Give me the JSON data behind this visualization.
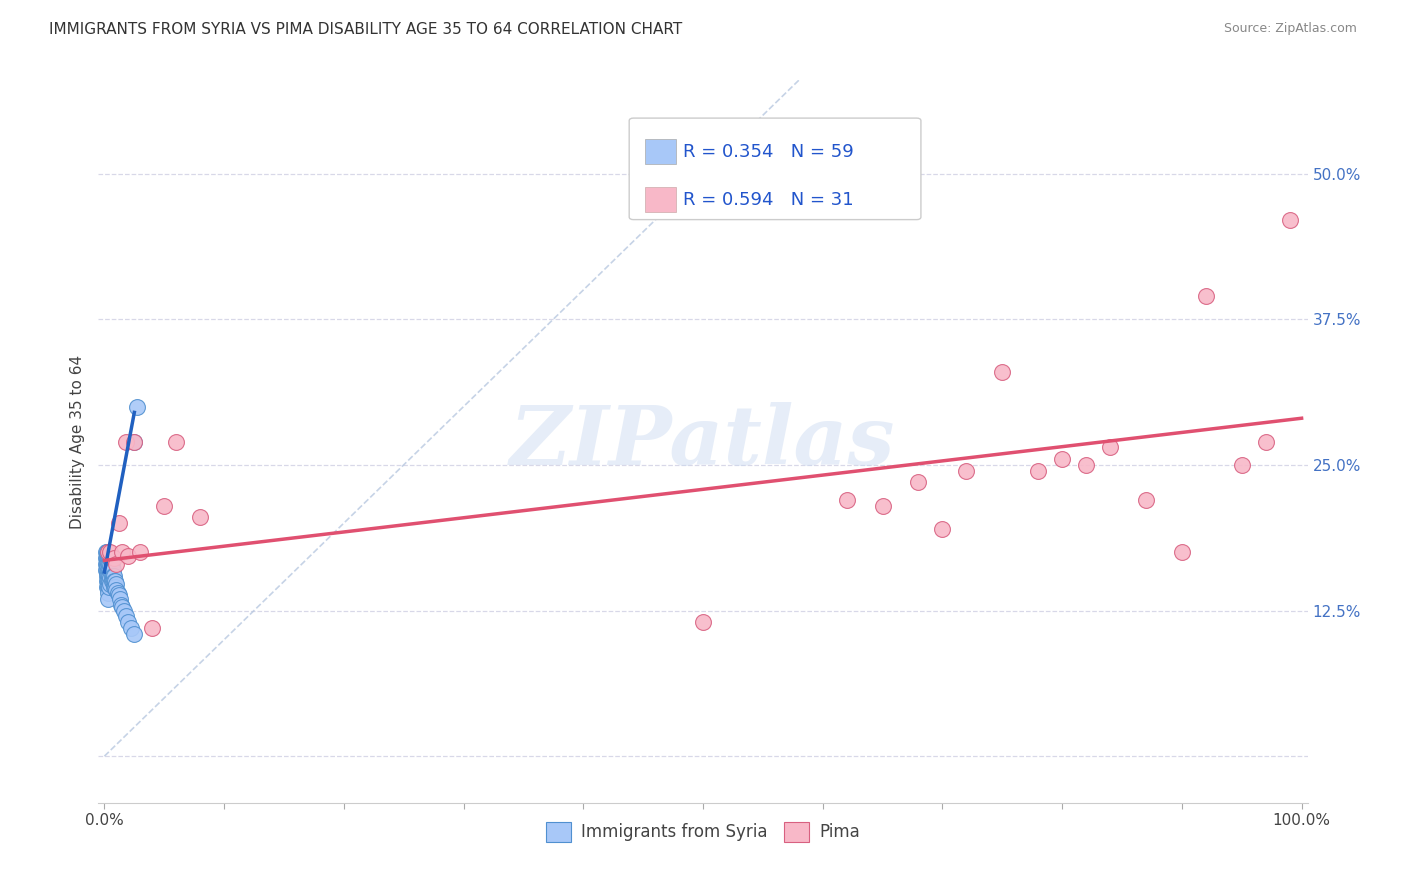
{
  "title": "IMMIGRANTS FROM SYRIA VS PIMA DISABILITY AGE 35 TO 64 CORRELATION CHART",
  "source": "Source: ZipAtlas.com",
  "ylabel": "Disability Age 35 to 64",
  "xlim": [
    -0.005,
    1.005
  ],
  "ylim": [
    -0.04,
    0.58
  ],
  "x_ticks": [
    0.0,
    0.1,
    0.2,
    0.3,
    0.4,
    0.5,
    0.6,
    0.7,
    0.8,
    0.9,
    1.0
  ],
  "x_tick_labels_show": [
    "0.0%",
    "",
    "",
    "",
    "",
    "",
    "",
    "",
    "",
    "",
    "100.0%"
  ],
  "y_ticks": [
    0.0,
    0.125,
    0.25,
    0.375,
    0.5
  ],
  "y_tick_labels": [
    "",
    "12.5%",
    "25.0%",
    "37.5%",
    "50.0%"
  ],
  "legend_blue_R": "R = 0.354",
  "legend_blue_N": "N = 59",
  "legend_pink_R": "R = 0.594",
  "legend_pink_N": "N = 31",
  "legend_label_blue": "Immigrants from Syria",
  "legend_label_pink": "Pima",
  "blue_color": "#a8c8f8",
  "pink_color": "#f8b8c8",
  "blue_edge_color": "#5090d0",
  "pink_edge_color": "#d86080",
  "blue_line_color": "#2060c0",
  "pink_line_color": "#e05070",
  "watermark": "ZIPatlas",
  "background_color": "#ffffff",
  "blue_scatter_x": [
    0.001,
    0.001,
    0.001,
    0.001,
    0.002,
    0.002,
    0.002,
    0.002,
    0.002,
    0.002,
    0.002,
    0.002,
    0.002,
    0.003,
    0.003,
    0.003,
    0.003,
    0.003,
    0.003,
    0.003,
    0.003,
    0.003,
    0.004,
    0.004,
    0.004,
    0.004,
    0.004,
    0.004,
    0.005,
    0.005,
    0.005,
    0.005,
    0.005,
    0.006,
    0.006,
    0.006,
    0.006,
    0.007,
    0.007,
    0.007,
    0.008,
    0.008,
    0.008,
    0.009,
    0.009,
    0.01,
    0.01,
    0.011,
    0.012,
    0.013,
    0.014,
    0.015,
    0.016,
    0.018,
    0.02,
    0.022,
    0.025,
    0.025,
    0.027
  ],
  "blue_scatter_y": [
    0.175,
    0.17,
    0.165,
    0.16,
    0.175,
    0.172,
    0.168,
    0.165,
    0.162,
    0.158,
    0.155,
    0.15,
    0.145,
    0.175,
    0.17,
    0.165,
    0.16,
    0.155,
    0.15,
    0.145,
    0.14,
    0.135,
    0.17,
    0.165,
    0.16,
    0.155,
    0.15,
    0.145,
    0.168,
    0.163,
    0.158,
    0.153,
    0.148,
    0.165,
    0.16,
    0.155,
    0.15,
    0.16,
    0.155,
    0.15,
    0.155,
    0.15,
    0.145,
    0.15,
    0.145,
    0.148,
    0.143,
    0.14,
    0.138,
    0.135,
    0.13,
    0.128,
    0.125,
    0.12,
    0.115,
    0.11,
    0.105,
    0.27,
    0.3
  ],
  "pink_scatter_x": [
    0.003,
    0.005,
    0.008,
    0.01,
    0.012,
    0.015,
    0.018,
    0.02,
    0.025,
    0.03,
    0.04,
    0.05,
    0.06,
    0.08,
    0.5,
    0.62,
    0.65,
    0.68,
    0.7,
    0.72,
    0.75,
    0.78,
    0.8,
    0.82,
    0.84,
    0.87,
    0.9,
    0.92,
    0.95,
    0.97,
    0.99
  ],
  "pink_scatter_y": [
    0.175,
    0.175,
    0.17,
    0.165,
    0.2,
    0.175,
    0.27,
    0.172,
    0.27,
    0.175,
    0.11,
    0.215,
    0.27,
    0.205,
    0.115,
    0.22,
    0.215,
    0.235,
    0.195,
    0.245,
    0.33,
    0.245,
    0.255,
    0.25,
    0.265,
    0.22,
    0.175,
    0.395,
    0.25,
    0.27,
    0.46
  ],
  "blue_trend_x": [
    0.0,
    0.025
  ],
  "blue_trend_y": [
    0.158,
    0.295
  ],
  "pink_trend_x": [
    0.0,
    1.0
  ],
  "pink_trend_y": [
    0.168,
    0.29
  ],
  "dash_line_x": [
    0.0,
    0.58
  ],
  "dash_line_y": [
    0.0,
    0.58
  ],
  "grid_color": "#d8d8e8",
  "title_fontsize": 11,
  "axis_label_fontsize": 11,
  "tick_fontsize": 11,
  "right_tick_color": "#4472c4",
  "dot_size": 130
}
